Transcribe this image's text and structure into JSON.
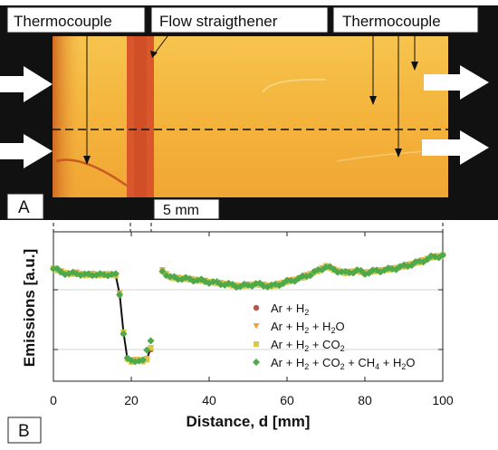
{
  "panel_a": {
    "label": "A",
    "thermocouple_left": "Thermocouple",
    "flow_straightener": "Flow straigthener",
    "thermocouple_right": "Thermocouple",
    "scale_bar": "5 mm"
  },
  "panel_b": {
    "label": "B"
  },
  "chart_data": {
    "type": "scatter",
    "xlabel": "Distance, d [mm]",
    "ylabel": "Emissions  [a.u.]",
    "xlim": [
      0,
      100
    ],
    "ylim": [
      0,
      1
    ],
    "xticks": [
      "0",
      "20",
      "40",
      "60",
      "80",
      "100"
    ],
    "grid": "horizontal",
    "legend_position": "bottom-right",
    "series": [
      {
        "name": "Ar + H",
        "sub": "2",
        "rest": "",
        "color": "#b5574f",
        "marker": "circle"
      },
      {
        "name": "Ar + H",
        "sub": "2",
        "rest": " + H",
        "sub2": "2",
        "rest2": "O",
        "color": "#f0a04b",
        "marker": "triangle"
      },
      {
        "name": "Ar + H",
        "sub": "2",
        "rest": " + CO",
        "sub2": "2",
        "rest2": "",
        "color": "#d9c84a",
        "marker": "square"
      },
      {
        "name": "Ar + H",
        "sub": "2",
        "rest": " + CO",
        "sub2": "2",
        "rest2": " + CH",
        "sub3": "4",
        "rest3": " + H",
        "sub4": "2",
        "rest4": "O",
        "color": "#4caa4a",
        "marker": "diamond"
      }
    ],
    "profile": {
      "x": [
        0,
        2,
        4,
        6,
        8,
        10,
        12,
        14,
        16,
        17,
        18,
        19,
        20,
        21,
        22,
        23,
        24,
        25,
        28,
        30,
        33,
        36,
        40,
        44,
        48,
        52,
        56,
        60,
        64,
        68,
        70,
        72,
        75,
        78,
        80,
        83,
        86,
        90,
        94,
        97,
        100
      ],
      "y": [
        0.88,
        0.85,
        0.83,
        0.84,
        0.82,
        0.83,
        0.82,
        0.83,
        0.82,
        0.65,
        0.3,
        0.06,
        0.04,
        0.05,
        0.05,
        0.04,
        0.06,
        0.16,
        0.86,
        0.8,
        0.79,
        0.78,
        0.76,
        0.74,
        0.72,
        0.74,
        0.72,
        0.76,
        0.8,
        0.86,
        0.9,
        0.87,
        0.84,
        0.86,
        0.84,
        0.86,
        0.87,
        0.9,
        0.94,
        0.98,
        1.0
      ]
    }
  }
}
